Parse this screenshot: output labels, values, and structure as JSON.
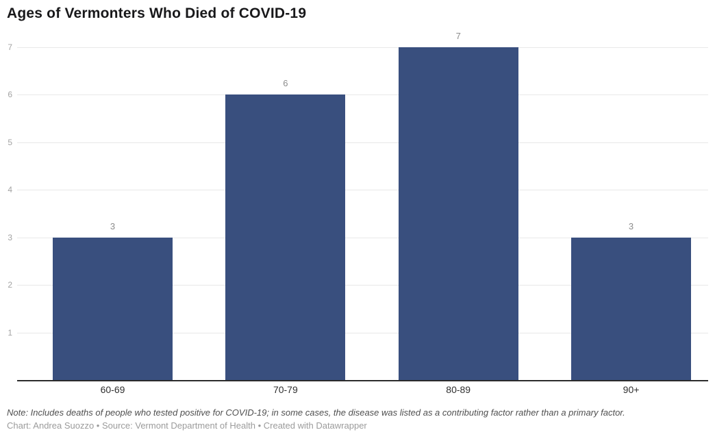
{
  "title": "Ages of Vermonters Who Died of COVID-19",
  "chart_data": {
    "type": "bar",
    "title": "Ages of Vermonters Who Died of COVID-19",
    "categories": [
      "60-69",
      "70-79",
      "80-89",
      "90+"
    ],
    "values": [
      3,
      6,
      7,
      3
    ],
    "value_labels": [
      "3",
      "6",
      "7",
      "3"
    ],
    "xlabel": "",
    "ylabel": "",
    "ylim": [
      0,
      7
    ],
    "yticks": [
      1,
      2,
      3,
      4,
      5,
      6,
      7
    ],
    "grid": true,
    "legend": "none",
    "bar_color": "#394f7e",
    "gridline_color": "#e8e8e8",
    "axis_line_color": "#2b2b2b",
    "tick_label_color": "#a3a3a3",
    "value_label_color": "#8c8c8c",
    "category_label_color": "#2f2f2f"
  },
  "footer": {
    "note": "Note: Includes deaths of people who tested positive for COVID-19; in some cases, the disease was listed as a contributing factor rather than a primary factor.",
    "byline": "Chart: Andrea Suozzo • Source: Vermont Department of Health • Created with Datawrapper"
  }
}
